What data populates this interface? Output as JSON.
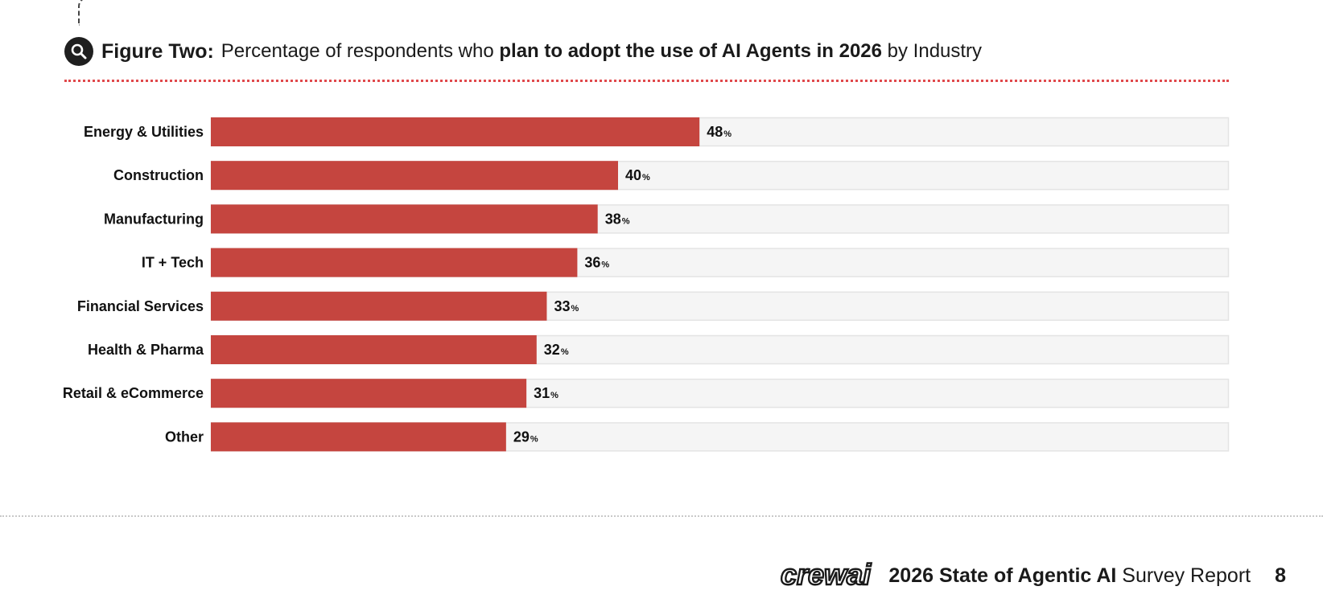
{
  "header": {
    "figure_label": "Figure Two:",
    "text_before": "Percentage of respondents who",
    "text_bold": "plan to adopt the use of AI Agents in 2026",
    "text_after": "by Industry",
    "icon": "search-icon"
  },
  "chart_data": {
    "type": "bar",
    "orientation": "horizontal",
    "title": "Percentage of respondents who plan to adopt the use of AI Agents in 2026 by Industry",
    "categories": [
      "Energy & Utilities",
      "Construction",
      "Manufacturing",
      "IT + Tech",
      "Financial Services",
      "Health & Pharma",
      "Retail & eCommerce",
      "Other"
    ],
    "values": [
      48,
      40,
      38,
      36,
      33,
      32,
      31,
      29
    ],
    "unit": "%",
    "xlim": [
      0,
      100
    ],
    "xlabel": "",
    "ylabel": "",
    "grid": false,
    "legend": "none",
    "colors": {
      "bar": "#c5453f",
      "track": "#f5f5f5",
      "track_border": "#e4e4e4"
    }
  },
  "footer": {
    "brand": "crewai",
    "report_title_bold": "2026 State of Agentic AI",
    "report_title_rest": "Survey Report",
    "page_number": "8"
  }
}
